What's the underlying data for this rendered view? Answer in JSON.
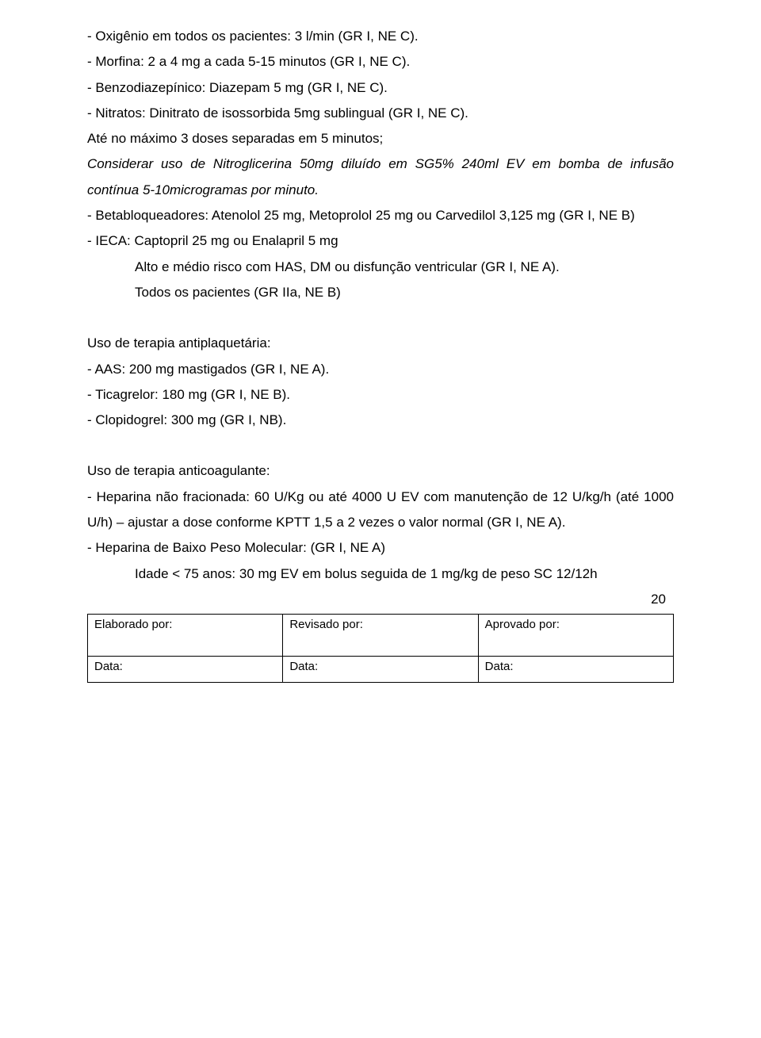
{
  "lines": {
    "l1": "- Oxigênio em todos os pacientes: 3 l/min (GR I, NE C).",
    "l2": "- Morfina: 2 a 4 mg a cada 5-15 minutos (GR I, NE C).",
    "l3": "- Benzodiazepínico: Diazepam 5 mg (GR I, NE C).",
    "l4": "- Nitratos: Dinitrato de isossorbida 5mg sublingual (GR I, NE C).",
    "l5": "Até no máximo 3 doses separadas em 5 minutos;",
    "l6": "Considerar uso de Nitroglicerina 50mg diluído em SG5% 240ml EV em bomba de infusão contínua 5-10microgramas por minuto.",
    "l7": "- Betabloqueadores: Atenolol 25 mg, Metoprolol 25 mg ou Carvedilol 3,125 mg (GR I, NE B)",
    "l8": "- IECA: Captopril 25 mg ou Enalapril 5 mg",
    "l9": "Alto e médio risco com HAS, DM ou disfunção ventricular (GR I, NE A).",
    "l10": "Todos os pacientes (GR IIa, NE B)",
    "l11": "Uso de terapia antiplaquetária:",
    "l12": "- AAS: 200 mg mastigados (GR I, NE A).",
    "l13": "- Ticagrelor: 180 mg (GR I, NE B).",
    "l14": "- Clopidogrel: 300 mg (GR I, NB).",
    "l15": "Uso de terapia anticoagulante:",
    "l16": "- Heparina não fracionada: 60 U/Kg ou até 4000 U EV com manutenção de 12 U/kg/h (até 1000 U/h) – ajustar a dose conforme KPTT 1,5 a 2 vezes o valor normal (GR I, NE A).",
    "l17": "- Heparina de Baixo Peso Molecular: (GR I, NE A)",
    "l18": "Idade < 75 anos: 30 mg EV em bolus seguida de 1 mg/kg de peso SC 12/12h"
  },
  "page_number": "20",
  "footer": {
    "elaborado": "Elaborado por:",
    "revisado": "Revisado por:",
    "aprovado": "Aprovado por:",
    "data": "Data:"
  }
}
